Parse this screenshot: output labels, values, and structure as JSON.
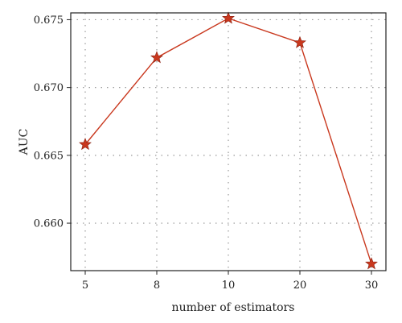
{
  "chart_data": {
    "type": "line",
    "title": "",
    "xlabel": "number of estimators",
    "ylabel": "AUC",
    "categories": [
      "5",
      "8",
      "10",
      "20",
      "30"
    ],
    "series": [
      {
        "values": [
          0.6658,
          0.6722,
          0.6751,
          0.6733,
          0.657
        ],
        "color": "#c9381e",
        "marker": "star"
      }
    ],
    "y_ticks": [
      "0.660",
      "0.665",
      "0.670",
      "0.675"
    ],
    "ylim": [
      0.6565,
      0.6755
    ],
    "grid": true
  }
}
